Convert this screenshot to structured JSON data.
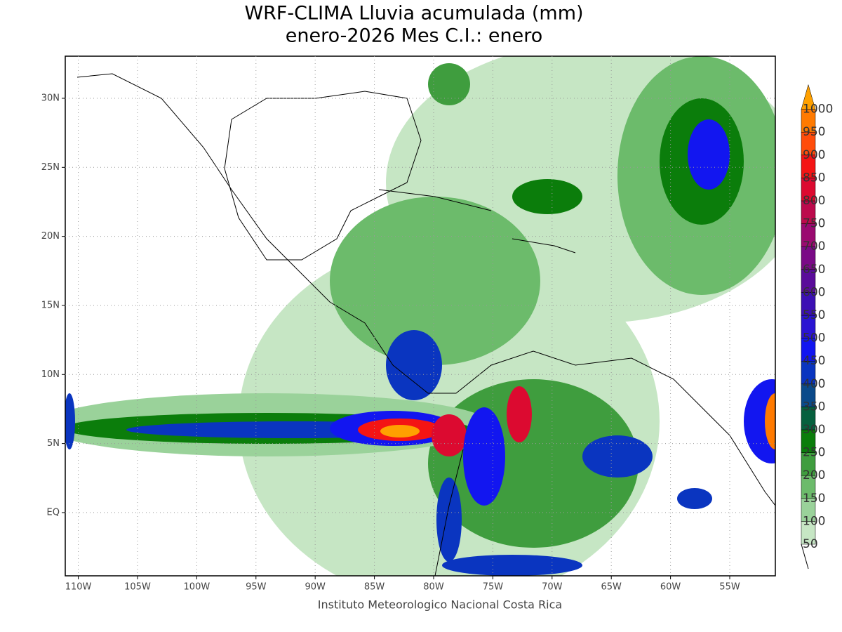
{
  "map": {
    "title": "WRF-CLIMA Lluvia acumulada (mm)",
    "subtitle": "enero-2026 Mes C.I.: enero",
    "footer": "Instituto Meteorologico Nacional Costa Rica",
    "xlim": [
      -111.1,
      -51.15
    ],
    "ylim": [
      -4.58,
      33.05
    ],
    "xticks": [
      {
        "value": -110,
        "label": "110W"
      },
      {
        "value": -105,
        "label": "105W"
      },
      {
        "value": -100,
        "label": "100W"
      },
      {
        "value": -95,
        "label": "95W"
      },
      {
        "value": -90,
        "label": "90W"
      },
      {
        "value": -85,
        "label": "85W"
      },
      {
        "value": -80,
        "label": "80W"
      },
      {
        "value": -75,
        "label": "75W"
      },
      {
        "value": -70,
        "label": "70W"
      },
      {
        "value": -65,
        "label": "65W"
      },
      {
        "value": -60,
        "label": "60W"
      },
      {
        "value": -55,
        "label": "55W"
      }
    ],
    "yticks": [
      {
        "value": 0,
        "label": "EQ"
      },
      {
        "value": 5,
        "label": "5N"
      },
      {
        "value": 10,
        "label": "10N"
      },
      {
        "value": 15,
        "label": "15N"
      },
      {
        "value": 20,
        "label": "20N"
      },
      {
        "value": 25,
        "label": "25N"
      },
      {
        "value": 30,
        "label": "30N"
      }
    ],
    "grid": true,
    "colorbar": {
      "levels": [
        50,
        100,
        150,
        200,
        250,
        300,
        350,
        400,
        450,
        500,
        550,
        600,
        650,
        700,
        750,
        800,
        850,
        900,
        950,
        1000
      ],
      "colors": [
        "#c6e6c4",
        "#9ad29a",
        "#6cbb6b",
        "#3f9d3e",
        "#0b7d0b",
        "#06603e",
        "#0b4a8a",
        "#0a35c0",
        "#1216f0",
        "#2a14d2",
        "#3c10b4",
        "#5a0c9a",
        "#7a0a86",
        "#9a0a70",
        "#bc0a4c",
        "#dc0a30",
        "#f41414",
        "#ff4c0a",
        "#ff7a00",
        "#ffa000"
      ]
    }
  }
}
